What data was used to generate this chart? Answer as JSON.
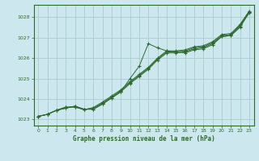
{
  "title": "Graphe pression niveau de la mer (hPa)",
  "bg_color": "#cce8ee",
  "grid_color": "#aacccc",
  "line_color": "#2d6a2d",
  "xlim": [
    -0.5,
    23.5
  ],
  "ylim": [
    1022.7,
    1028.6
  ],
  "yticks": [
    1023,
    1024,
    1025,
    1026,
    1027,
    1028
  ],
  "xticks": [
    0,
    1,
    2,
    3,
    4,
    5,
    6,
    7,
    8,
    9,
    10,
    11,
    12,
    13,
    14,
    15,
    16,
    17,
    18,
    19,
    20,
    21,
    22,
    23
  ],
  "lines": [
    [
      1023.15,
      1023.25,
      1023.45,
      1023.55,
      1023.65,
      1023.5,
      1023.5,
      1023.75,
      1024.05,
      1024.35,
      1025.0,
      1025.6,
      1026.7,
      1026.5,
      1026.35,
      1026.3,
      1026.25,
      1026.4,
      1026.45,
      1026.65,
      1027.05,
      1027.1,
      1027.5,
      1028.25
    ],
    [
      1023.15,
      1023.25,
      1023.45,
      1023.55,
      1023.65,
      1023.5,
      1023.5,
      1023.75,
      1024.05,
      1024.35,
      1024.75,
      1025.1,
      1025.45,
      1025.9,
      1026.25,
      1026.25,
      1026.3,
      1026.45,
      1026.5,
      1026.7,
      1027.05,
      1027.1,
      1027.55,
      1028.2
    ],
    [
      1023.15,
      1023.25,
      1023.45,
      1023.6,
      1023.6,
      1023.48,
      1023.55,
      1023.8,
      1024.1,
      1024.4,
      1024.8,
      1025.15,
      1025.5,
      1025.95,
      1026.3,
      1026.3,
      1026.35,
      1026.5,
      1026.55,
      1026.75,
      1027.1,
      1027.15,
      1027.6,
      1028.25
    ],
    [
      1023.15,
      1023.25,
      1023.45,
      1023.6,
      1023.62,
      1023.48,
      1023.58,
      1023.85,
      1024.15,
      1024.45,
      1024.85,
      1025.2,
      1025.55,
      1026.0,
      1026.35,
      1026.35,
      1026.4,
      1026.55,
      1026.6,
      1026.8,
      1027.15,
      1027.2,
      1027.65,
      1028.3
    ]
  ]
}
